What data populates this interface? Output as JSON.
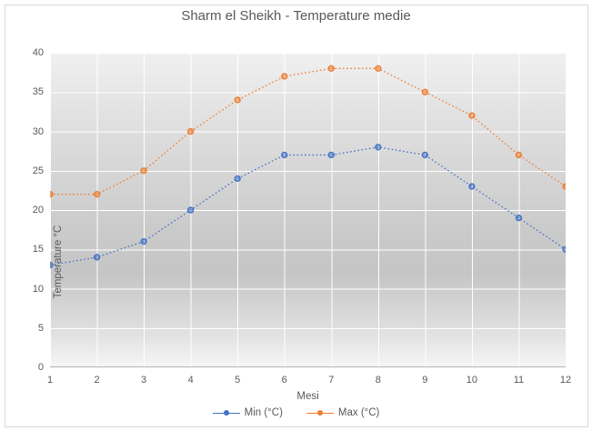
{
  "title": "Sharm el Sheikh - Temperature medie",
  "chart_data": {
    "type": "line",
    "x": [
      1,
      2,
      3,
      4,
      5,
      6,
      7,
      8,
      9,
      10,
      11,
      12
    ],
    "series": [
      {
        "name": "Min (°C)",
        "color": "#4472C4",
        "values": [
          13,
          14,
          16,
          20,
          24,
          27,
          27,
          28,
          27,
          23,
          19,
          15
        ]
      },
      {
        "name": "Max (°C)",
        "color": "#ED7D31",
        "values": [
          22,
          22,
          25,
          30,
          34,
          37,
          38,
          38,
          35,
          32,
          27,
          23
        ]
      }
    ],
    "title": "Sharm el Sheikh - Temperature medie",
    "xlabel": "Mesi",
    "ylabel": "Temperature °C",
    "ylim": [
      0,
      40
    ],
    "ytick_step": 5,
    "xticks": [
      "1",
      "2",
      "3",
      "4",
      "5",
      "6",
      "7",
      "8",
      "9",
      "10",
      "11",
      "12"
    ],
    "yticks": [
      "0",
      "5",
      "10",
      "15",
      "20",
      "25",
      "30",
      "35",
      "40"
    ],
    "grid": true,
    "gridline_color": "#ffffff",
    "axis_line_color": "#b3b3b3",
    "text_color": "#595959",
    "line_style": "dotted",
    "legend_position": "bottom"
  }
}
